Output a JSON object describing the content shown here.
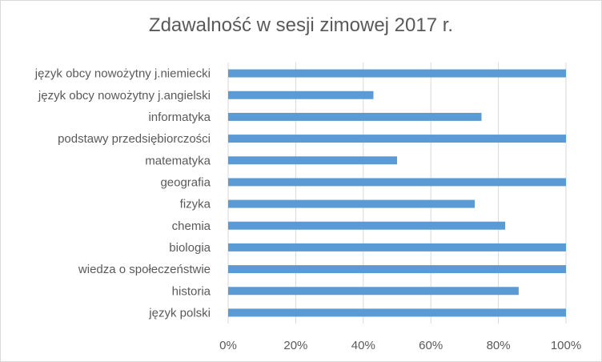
{
  "chart_data": {
    "type": "bar",
    "orientation": "horizontal",
    "title": "Zdawalność w sesji zimowej 2017 r.",
    "xlabel": "",
    "ylabel": "",
    "categories": [
      "język obcy nowożytny j.niemiecki",
      "język obcy nowożytny j.angielski",
      "informatyka",
      "podstawy przedsiębiorczości",
      "matematyka",
      "geografia",
      "fizyka",
      "chemia",
      "biologia",
      "wiedza o społeczeństwie",
      "historia",
      "język polski"
    ],
    "values": [
      100,
      43,
      75,
      100,
      50,
      100,
      73,
      82,
      100,
      100,
      86,
      100
    ],
    "xlim": [
      0,
      100
    ],
    "tick_labels": [
      "0%",
      "20%",
      "40%",
      "60%",
      "80%",
      "100%"
    ],
    "ticks": [
      0,
      20,
      40,
      60,
      80,
      100
    ],
    "grid": true,
    "legend": "none",
    "bar_color": "#5b9bd5",
    "grid_color": "#d9d9d9"
  }
}
